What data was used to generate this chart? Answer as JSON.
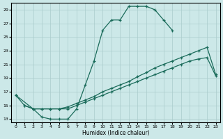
{
  "bg_color": "#cce8e8",
  "grid_color": "#aacccc",
  "line_color": "#1a6b5a",
  "xlabel": "Humidex (Indice chaleur)",
  "xlim": [
    -0.5,
    23.5
  ],
  "ylim": [
    12.5,
    30.0
  ],
  "yticks": [
    13,
    15,
    17,
    19,
    21,
    23,
    25,
    27,
    29
  ],
  "curve1_x": [
    0,
    1,
    2,
    3,
    4,
    5,
    6,
    7,
    8,
    9,
    10,
    11,
    12,
    13,
    14,
    15,
    16,
    17,
    18
  ],
  "curve1_y": [
    16.5,
    15.0,
    14.5,
    13.3,
    13.0,
    13.0,
    13.0,
    14.5,
    18.0,
    21.5,
    26.0,
    27.5,
    27.5,
    29.5,
    29.5,
    29.5,
    29.0,
    27.5,
    26.0
  ],
  "curve2_x": [
    1,
    2,
    3,
    4,
    5,
    6,
    7,
    8,
    9,
    10,
    11,
    12,
    13,
    14,
    15,
    16,
    17,
    18,
    19,
    20,
    21,
    22,
    23
  ],
  "curve2_y": [
    15.0,
    14.5,
    14.5,
    14.5,
    14.5,
    14.8,
    15.3,
    15.8,
    16.3,
    17.0,
    17.5,
    18.0,
    18.5,
    19.2,
    19.8,
    20.5,
    21.0,
    21.5,
    22.0,
    22.5,
    23.0,
    23.5,
    19.5
  ],
  "curve3_x": [
    0,
    2,
    3,
    4,
    5,
    6,
    7,
    8,
    9,
    10,
    11,
    12,
    13,
    14,
    15,
    16,
    17,
    18,
    19,
    20,
    21,
    22,
    23
  ],
  "curve3_y": [
    16.5,
    14.5,
    14.5,
    14.5,
    14.5,
    14.5,
    15.0,
    15.5,
    16.0,
    16.5,
    17.0,
    17.5,
    18.0,
    18.5,
    19.0,
    19.5,
    20.0,
    20.5,
    21.0,
    21.5,
    21.8,
    22.0,
    19.3
  ]
}
